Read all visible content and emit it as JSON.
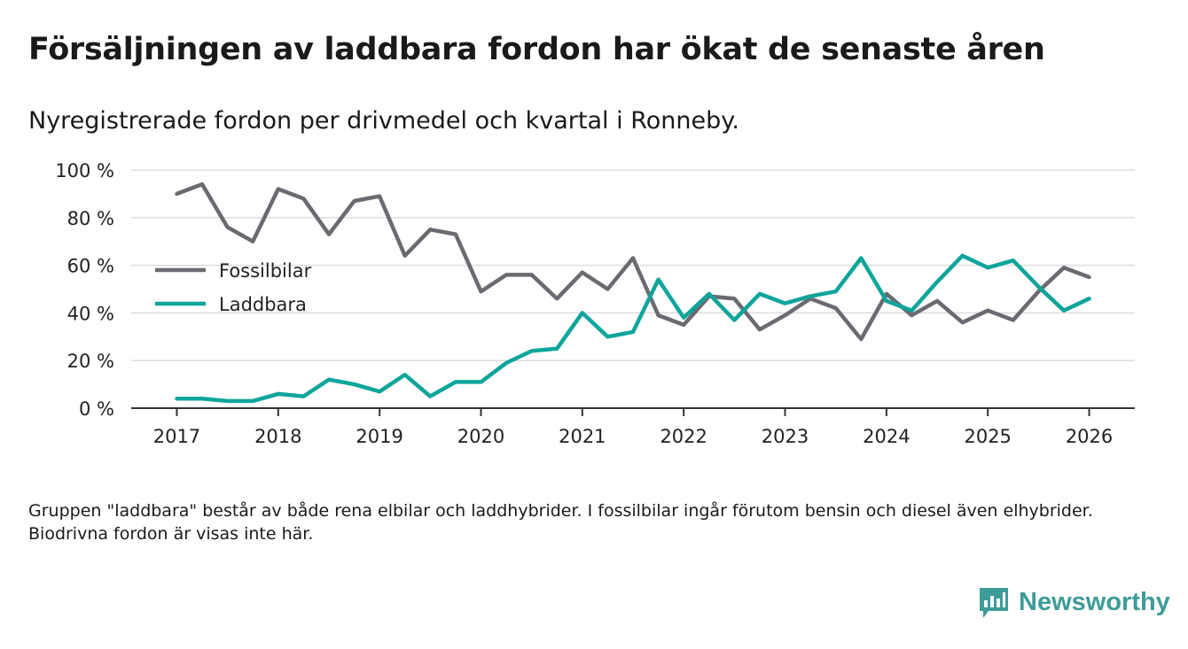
{
  "header": {
    "title": "Försäljningen av laddbara fordon har ökat de senaste åren",
    "subtitle": "Nyregistrerade fordon per drivmedel och kvartal i Ronneby."
  },
  "footnote": "Gruppen \"laddbara\" består av både rena elbilar och laddhybrider. I fossilbilar ingår förutom bensin och diesel även elhybrider. Biodrivna fordon är visas inte här.",
  "brand": {
    "name": "Newsworthy",
    "color": "#3e9c98"
  },
  "colors": {
    "fossil": "#6b6a71",
    "laddbara": "#0ea59b",
    "grid": "#dddddd",
    "axis": "#333333"
  },
  "chart_data": {
    "type": "line",
    "title": "Försäljningen av laddbara fordon har ökat de senaste åren",
    "xlabel": "",
    "ylabel": "",
    "x_tick_labels": [
      "2017",
      "2018",
      "2019",
      "2020",
      "2021",
      "2022",
      "2023",
      "2024",
      "2025",
      "2026"
    ],
    "xlim": [
      2016.55,
      2026.45
    ],
    "ylim": [
      0,
      100
    ],
    "y_ticks": [
      0,
      20,
      40,
      60,
      80,
      100
    ],
    "y_tick_labels": [
      "0 %",
      "20 %",
      "40 %",
      "60 %",
      "80 %",
      "100 %"
    ],
    "grid": true,
    "legend_position": "center-left",
    "x": [
      2017.0,
      2017.25,
      2017.5,
      2017.75,
      2018.0,
      2018.25,
      2018.5,
      2018.75,
      2019.0,
      2019.25,
      2019.5,
      2019.75,
      2020.0,
      2020.25,
      2020.5,
      2020.75,
      2021.0,
      2021.25,
      2021.5,
      2021.75,
      2022.0,
      2022.25,
      2022.5,
      2022.75,
      2023.0,
      2023.25,
      2023.5,
      2023.75,
      2024.0,
      2024.25,
      2024.5,
      2024.75,
      2025.0,
      2025.25,
      2025.5,
      2025.75,
      2026.0
    ],
    "series": [
      {
        "name": "Fossilbilar",
        "color": "#6b6a71",
        "values": [
          90,
          94,
          76,
          70,
          92,
          88,
          73,
          87,
          89,
          64,
          75,
          73,
          49,
          56,
          56,
          46,
          57,
          50,
          63,
          39,
          35,
          47,
          46,
          33,
          39,
          46,
          42,
          29,
          48,
          39,
          45,
          36,
          41,
          37,
          49,
          59,
          55
        ]
      },
      {
        "name": "Laddbara",
        "color": "#0ea59b",
        "values": [
          4,
          4,
          3,
          3,
          6,
          5,
          12,
          10,
          7,
          14,
          5,
          11,
          11,
          19,
          24,
          25,
          40,
          30,
          32,
          54,
          38,
          48,
          37,
          48,
          44,
          47,
          49,
          63,
          45,
          41,
          53,
          64,
          59,
          62,
          51,
          41,
          46
        ]
      }
    ]
  }
}
